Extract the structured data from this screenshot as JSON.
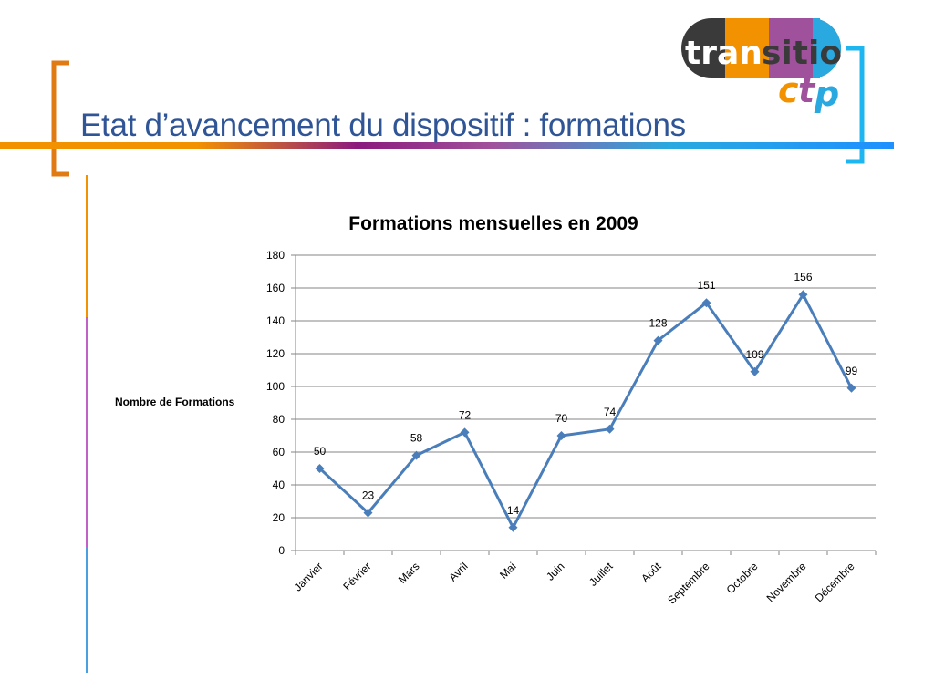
{
  "slide": {
    "title": "Etat d’avancement du dispositif : formations"
  },
  "logo": {
    "line1_parts": [
      "tran",
      "sitio"
    ],
    "line2_parts": [
      "c",
      "t",
      "p"
    ],
    "colors": {
      "orange": "#f39200",
      "purple": "#a0519b",
      "blue": "#29a9e0",
      "dark": "#3a3a3a",
      "white": "#ffffff"
    }
  },
  "decor_colors": {
    "bracket_left": "#e07b14",
    "bracket_right": "#1eb6f0",
    "bar_gradient": [
      "#f39200",
      "#8b1a7e",
      "#a0519b",
      "#29a9e0"
    ],
    "vertical_segments": [
      "#f39200",
      "#c060c8",
      "#4a9fe0"
    ]
  },
  "chart_data": {
    "type": "line",
    "title": "Formations mensuelles en 2009",
    "ylabel": "Nombre de Formations",
    "xlabel": "",
    "ylim": [
      0,
      180
    ],
    "yticks": [
      0,
      20,
      40,
      60,
      80,
      100,
      120,
      140,
      160,
      180
    ],
    "grid": true,
    "legend": "none",
    "categories": [
      "Janvier",
      "Février",
      "Mars",
      "Avril",
      "Mai",
      "Juin",
      "Juillet",
      "Août",
      "Septembre",
      "Octobre",
      "Novembre",
      "Décembre"
    ],
    "series": [
      {
        "values": [
          50,
          23,
          58,
          72,
          14,
          70,
          74,
          128,
          151,
          109,
          156,
          99
        ],
        "color": "#4a7ebb",
        "marker": "diamond",
        "data_labels": true
      }
    ]
  }
}
